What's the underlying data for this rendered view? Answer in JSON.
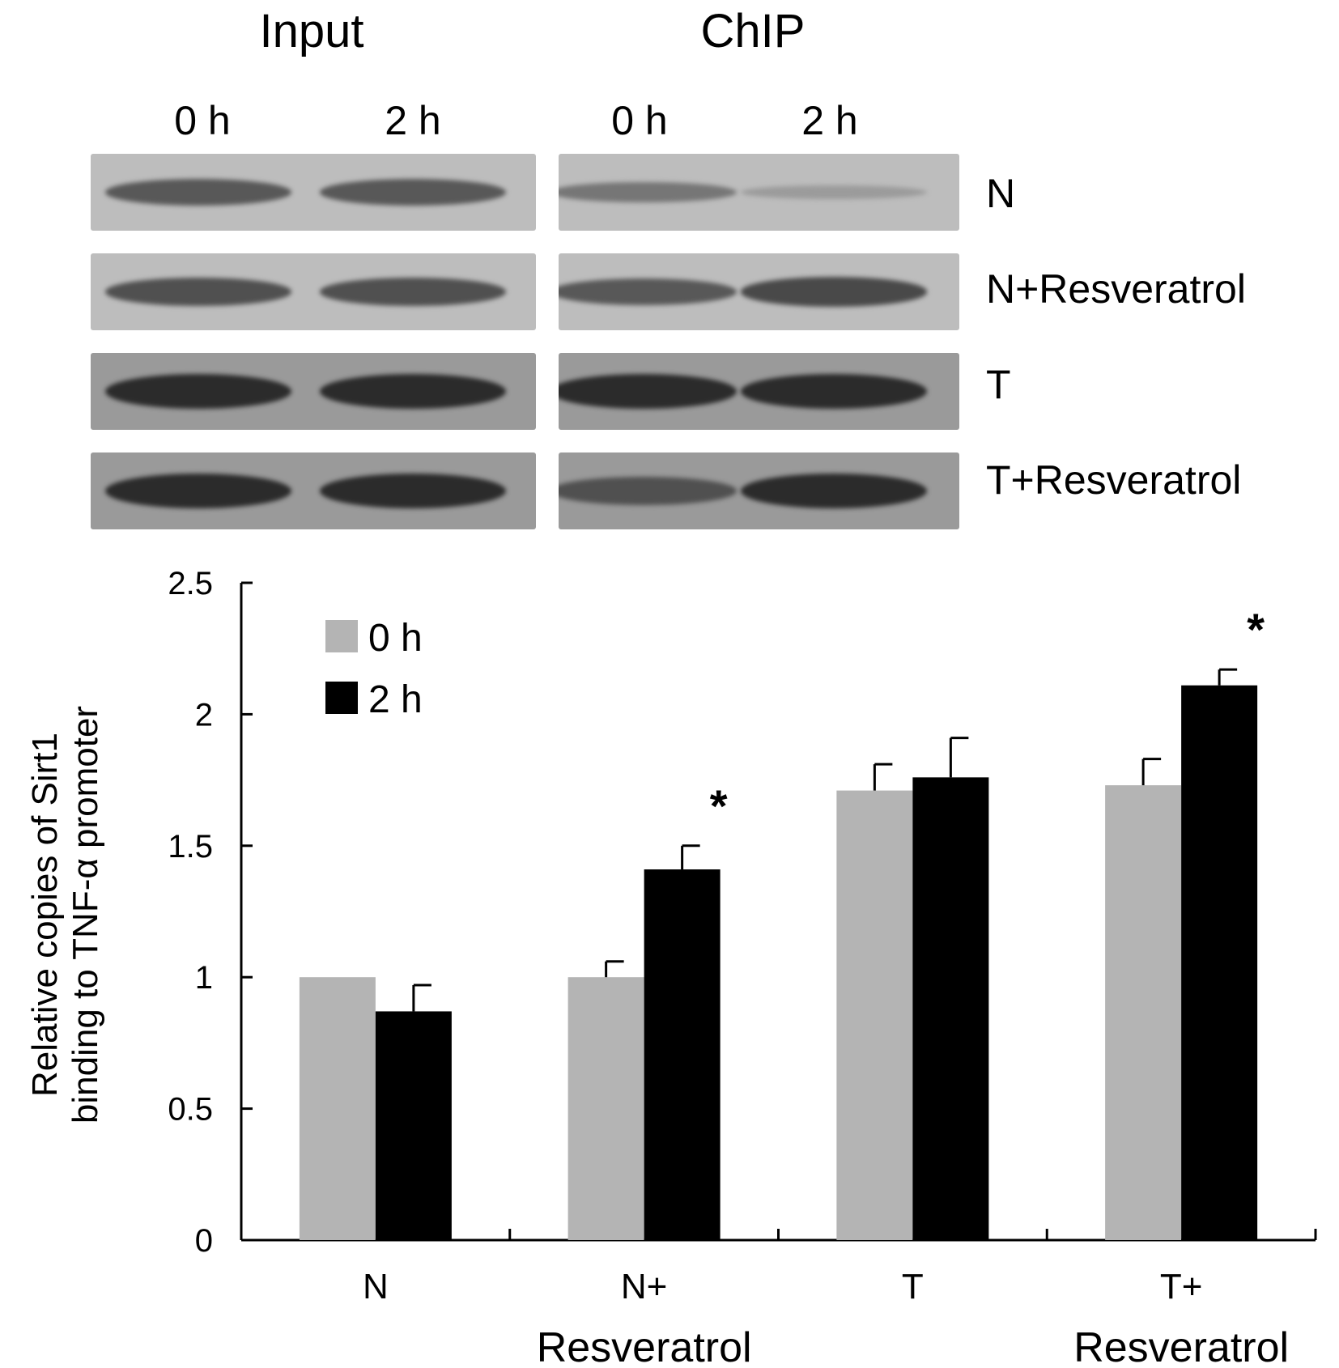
{
  "blot": {
    "headers": [
      "Input",
      "ChIP"
    ],
    "lanes": [
      "0 h",
      "2 h",
      "0 h",
      "2 h"
    ],
    "rows": [
      "N",
      "N+Resveratrol",
      "T",
      "T+Resveratrol"
    ],
    "band_intensity": [
      [
        0.55,
        0.55,
        0.35,
        0.1
      ],
      [
        0.6,
        0.6,
        0.55,
        0.65
      ],
      [
        0.85,
        0.85,
        0.85,
        0.85
      ],
      [
        0.85,
        0.85,
        0.6,
        0.85
      ]
    ]
  },
  "chart_data": {
    "type": "bar",
    "categories": [
      "N",
      "N+",
      "T",
      "T+"
    ],
    "category_sublabels": [
      "",
      "Resveratrol",
      "",
      "Resveratrol"
    ],
    "ylabel": [
      "Relative copies of Sirt1",
      "binding to TNF-α promoter"
    ],
    "ylim": [
      0,
      2.5
    ],
    "yticks": [
      "0",
      "0.5",
      "1",
      "1.5",
      "2",
      "2.5"
    ],
    "legend_position": "top-left",
    "series": [
      {
        "name": "0 h",
        "color": "#b4b4b4",
        "values": [
          1.0,
          1.0,
          1.71,
          1.73
        ],
        "errors": [
          0,
          0.06,
          0.1,
          0.1
        ]
      },
      {
        "name": "2 h",
        "color": "#000000",
        "values": [
          0.87,
          1.41,
          1.76,
          2.11
        ],
        "errors": [
          0.1,
          0.09,
          0.15,
          0.06
        ]
      }
    ],
    "significance": {
      "marker": "*",
      "points": [
        [
          1,
          1
        ],
        [
          3,
          1
        ]
      ]
    }
  }
}
